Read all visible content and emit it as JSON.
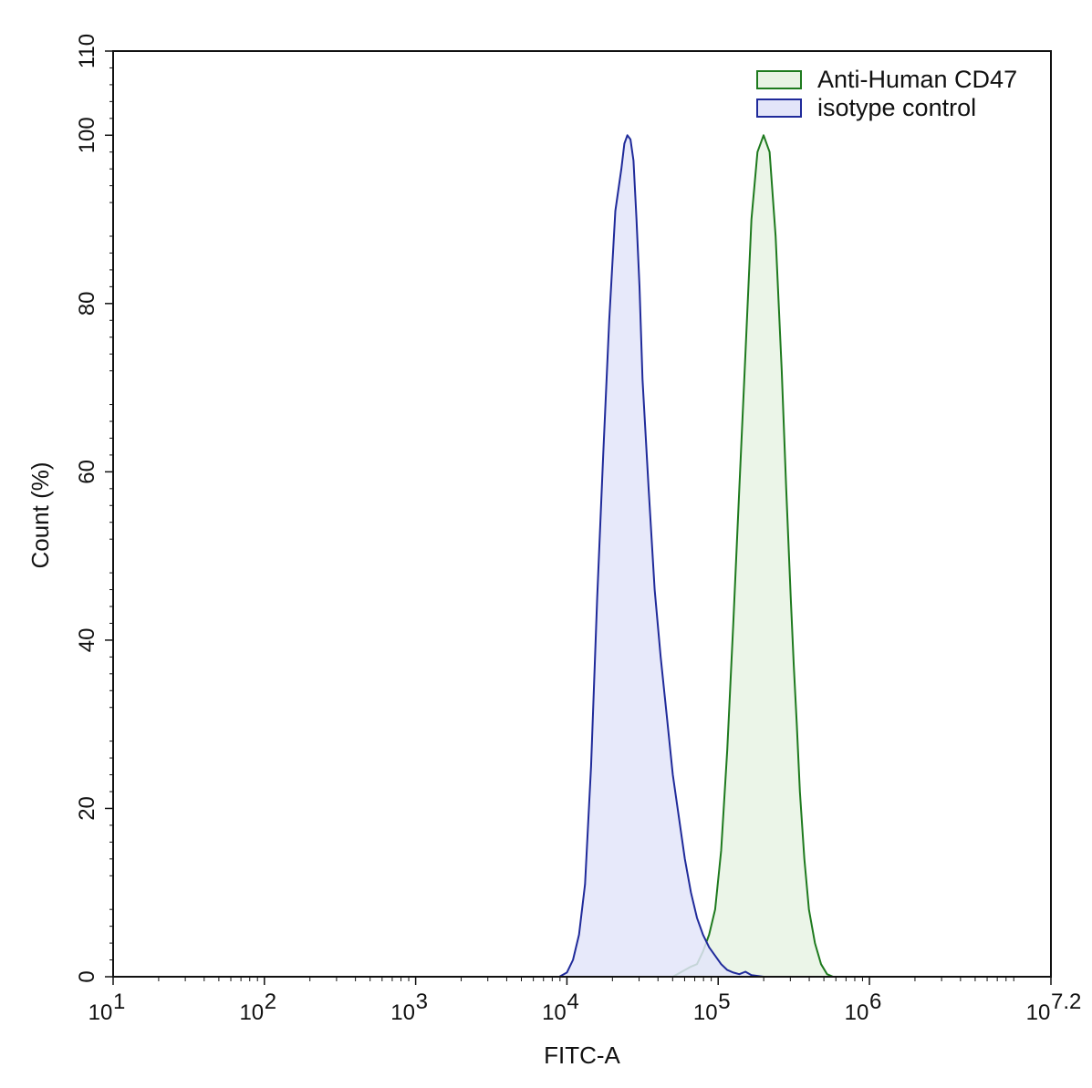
{
  "chart_data": {
    "type": "area",
    "title": "",
    "xlabel": "FITC-A",
    "ylabel": "Count  (%)",
    "x_scale": "log10",
    "xlim": [
      1,
      7.2
    ],
    "ylim": [
      0,
      110
    ],
    "x_ticks": [
      {
        "value": 1,
        "base": "10",
        "exp": "1"
      },
      {
        "value": 2,
        "base": "10",
        "exp": "2"
      },
      {
        "value": 3,
        "base": "10",
        "exp": "3"
      },
      {
        "value": 4,
        "base": "10",
        "exp": "4"
      },
      {
        "value": 5,
        "base": "10",
        "exp": "5"
      },
      {
        "value": 6,
        "base": "10",
        "exp": "6"
      },
      {
        "value": 7.2,
        "base": "10",
        "exp": "7.2"
      }
    ],
    "y_ticks": [
      "0",
      "20",
      "40",
      "60",
      "80",
      "100",
      "110"
    ],
    "grid": false,
    "legend_position": "top-right",
    "series": [
      {
        "name": "Anti-Human CD47",
        "stroke": "#1e7a1e",
        "fill": "#e8f3e4",
        "x": [
          4.7,
          4.78,
          4.82,
          4.86,
          4.9,
          4.94,
          4.98,
          5.02,
          5.06,
          5.1,
          5.14,
          5.18,
          5.22,
          5.26,
          5.3,
          5.34,
          5.38,
          5.42,
          5.45,
          5.48,
          5.5,
          5.52,
          5.54,
          5.57,
          5.6,
          5.64,
          5.68,
          5.72,
          5.76,
          5.8,
          5.84,
          5.88,
          5.92,
          5.96,
          6.0,
          6.04,
          6.1,
          6.2
        ],
        "y": [
          0,
          0.8,
          1.2,
          1.5,
          3,
          5,
          8,
          15,
          27,
          42,
          58,
          74,
          90,
          98,
          100,
          98,
          88,
          72,
          58,
          45,
          37,
          30,
          22,
          14,
          8,
          4,
          1.5,
          0.3,
          0,
          0,
          0,
          0,
          0,
          0,
          0,
          0,
          0,
          0
        ]
      },
      {
        "name": "isotype control",
        "stroke": "#1f2a9a",
        "fill": "#e3e5f9",
        "x": [
          3.95,
          4.0,
          4.04,
          4.08,
          4.12,
          4.16,
          4.2,
          4.24,
          4.28,
          4.32,
          4.36,
          4.38,
          4.4,
          4.42,
          4.44,
          4.46,
          4.48,
          4.5,
          4.54,
          4.58,
          4.62,
          4.66,
          4.7,
          4.74,
          4.78,
          4.82,
          4.86,
          4.9,
          4.94,
          4.98,
          5.02,
          5.06,
          5.1,
          5.14,
          5.18,
          5.22,
          5.26,
          5.3,
          5.34,
          5.38,
          5.42,
          5.46,
          5.5,
          5.56,
          5.62
        ],
        "y": [
          0,
          0.5,
          2,
          5,
          11,
          25,
          45,
          62,
          78,
          91,
          96,
          99,
          100,
          99.5,
          97,
          90,
          82,
          71,
          58,
          46,
          38,
          31,
          24,
          19,
          14,
          10,
          7,
          5,
          3.5,
          2.5,
          1.5,
          0.8,
          0.5,
          0.3,
          0.6,
          0.2,
          0.1,
          0,
          0,
          0,
          0,
          0,
          0,
          0,
          0
        ]
      }
    ]
  }
}
